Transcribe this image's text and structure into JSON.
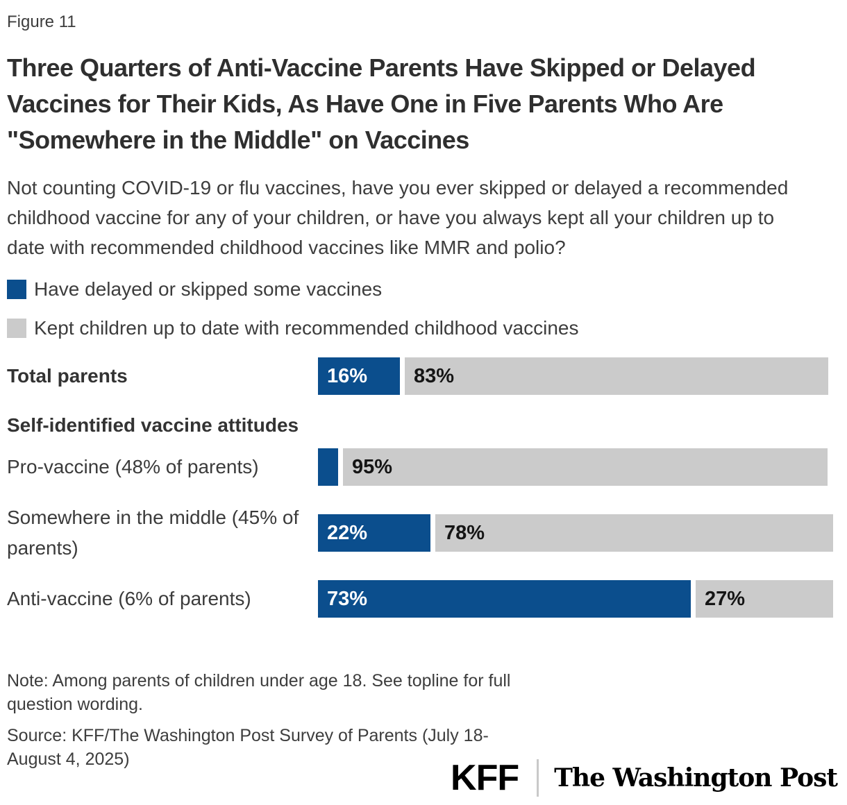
{
  "figure_label": "Figure 11",
  "title": "Three Quarters of Anti-Vaccine Parents Have Skipped or Delayed Vaccines for Their Kids, As Have One in Five Parents Who Are \"Somewhere in the Middle\" on Vaccines",
  "question": "Not counting COVID-19 or flu vaccines, have you ever skipped or delayed a recommended childhood vaccine for any of your children, or have you always kept all your children up to date with recommended childhood vaccines like MMR and polio?",
  "chart_data": {
    "type": "bar",
    "orientation": "horizontal",
    "stacked": true,
    "title": "Three Quarters of Anti-Vaccine Parents Have Skipped or Delayed Vaccines for Their Kids, As Have One in Five Parents Who Are \"Somewhere in the Middle\" on Vaccines",
    "categories": [
      "Total parents",
      "Pro-vaccine (48% of parents)",
      "Somewhere in the middle (45% of parents)",
      "Anti-vaccine (6% of parents)"
    ],
    "series": [
      {
        "name": "Have delayed or skipped some vaccines",
        "color": "#0b4e8d",
        "text_color": "#ffffff",
        "values": [
          16,
          4,
          22,
          73
        ],
        "value_labels": [
          "16%",
          "",
          "22%",
          "73%"
        ]
      },
      {
        "name": "Kept children up to date with recommended childhood vaccines",
        "color": "#cbcbcb",
        "text_color": "#151515",
        "values": [
          83,
          95,
          78,
          27
        ],
        "value_labels": [
          "83%",
          "95%",
          "78%",
          "27%"
        ]
      }
    ],
    "xlim": [
      0,
      100
    ],
    "grid": false,
    "legend_position": "top-left",
    "group_header": {
      "text": "Self-identified vaccine attitudes",
      "after_index": 0
    },
    "bold_category_indexes": [
      0
    ]
  },
  "note": "Note: Among parents of children under age 18. See topline for full question wording.",
  "source": "Source: KFF/The Washington Post Survey of Parents (July 18-August 4, 2025)",
  "branding": {
    "kff": "KFF",
    "washington_post": "The Washington Post"
  }
}
